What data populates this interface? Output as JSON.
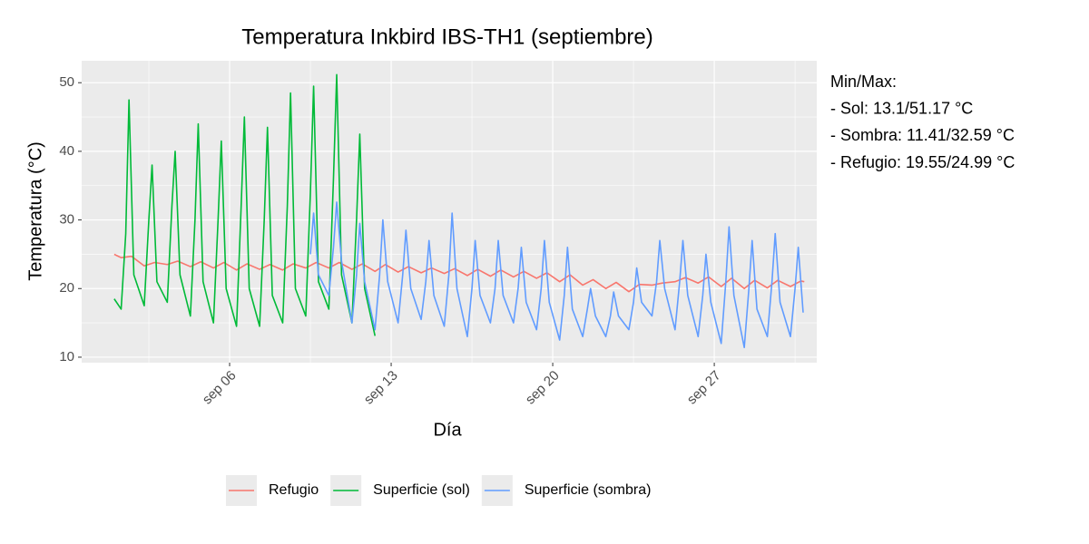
{
  "chart_data": {
    "type": "line",
    "title": "Temperatura Inkbird IBS-TH1 (septiembre)",
    "x_label": "Día",
    "y_label": "Temperatura (°C)",
    "annotation": [
      "Min/Max:",
      "- Sol: 13.1/51.17 °C",
      "- Sombra: 11.41/32.59 °C",
      "- Refugio: 19.55/24.99 °C"
    ],
    "xlim": [
      -0.41,
      31.44
    ],
    "ylim": [
      9.2,
      53.2
    ],
    "xticks": [
      {
        "value": 6,
        "label": "sep 06"
      },
      {
        "value": 13,
        "label": "sep 13"
      },
      {
        "value": 20,
        "label": "sep 20"
      },
      {
        "value": 27,
        "label": "sep 27"
      }
    ],
    "yticks": [
      10,
      20,
      30,
      40,
      50
    ],
    "grid": true,
    "legend": "bottom",
    "series": [
      {
        "name": "Refugio",
        "color": "#F8766D",
        "x": [
          1.0,
          1.3,
          1.75,
          2.3,
          2.75,
          3.3,
          3.75,
          4.3,
          4.75,
          5.3,
          5.75,
          6.3,
          6.75,
          7.3,
          7.75,
          8.3,
          8.75,
          9.3,
          9.75,
          10.3,
          10.75,
          11.3,
          11.75,
          12.3,
          12.75,
          13.3,
          13.75,
          14.3,
          14.75,
          15.3,
          15.75,
          16.3,
          16.75,
          17.3,
          17.75,
          18.3,
          18.75,
          19.3,
          19.75,
          20.3,
          20.75,
          21.3,
          21.75,
          22.3,
          22.75,
          23.3,
          23.75,
          24.3,
          24.75,
          25.3,
          25.75,
          26.3,
          26.75,
          27.3,
          27.75,
          28.3,
          28.75,
          29.3,
          29.75,
          30.3,
          30.75,
          30.9
        ],
        "values": [
          24.99,
          24.5,
          24.7,
          23.3,
          23.8,
          23.5,
          24.0,
          23.2,
          23.9,
          23.0,
          23.8,
          22.7,
          23.6,
          22.8,
          23.5,
          22.7,
          23.6,
          23.0,
          23.8,
          23.0,
          23.8,
          22.8,
          23.6,
          22.5,
          23.5,
          22.4,
          23.2,
          22.3,
          23.0,
          22.2,
          22.9,
          21.9,
          22.8,
          21.8,
          22.7,
          21.7,
          22.5,
          21.5,
          22.3,
          21.0,
          22.0,
          20.5,
          21.3,
          20.0,
          20.9,
          19.55,
          20.6,
          20.5,
          20.8,
          21.0,
          21.6,
          20.8,
          21.7,
          20.3,
          21.5,
          20.0,
          21.2,
          20.1,
          21.2,
          20.3,
          21.1,
          21.0
        ]
      },
      {
        "name": "Superficie (sol)",
        "color": "#00BA38",
        "x": [
          1.0,
          1.3,
          1.5,
          1.64,
          1.85,
          2.3,
          2.5,
          2.64,
          2.85,
          3.3,
          3.5,
          3.64,
          3.85,
          4.3,
          4.5,
          4.64,
          4.85,
          5.3,
          5.5,
          5.64,
          5.85,
          6.3,
          6.5,
          6.64,
          6.85,
          7.3,
          7.5,
          7.64,
          7.85,
          8.3,
          8.5,
          8.64,
          8.85,
          9.3,
          9.5,
          9.64,
          9.85,
          10.3,
          10.5,
          10.64,
          10.85,
          11.3,
          11.5,
          11.64,
          11.85,
          12.3
        ],
        "values": [
          18.5,
          17,
          28,
          47.5,
          22,
          17.5,
          30,
          38,
          21,
          18,
          32,
          40,
          22,
          16,
          30,
          44,
          21,
          15,
          30,
          41.5,
          20,
          14.5,
          32,
          45,
          20,
          14.5,
          30,
          43.5,
          19,
          15,
          32,
          48.5,
          20,
          16,
          34,
          49.5,
          21,
          17,
          36,
          51.17,
          22,
          15,
          30,
          42.5,
          20,
          13.1
        ]
      },
      {
        "name": "Superficie (sombra)",
        "color": "#619CFF",
        "x": [
          9.5,
          9.64,
          9.85,
          10.3,
          10.5,
          10.64,
          10.85,
          11.3,
          11.5,
          11.64,
          11.85,
          12.3,
          12.5,
          12.64,
          12.85,
          13.3,
          13.5,
          13.64,
          13.85,
          14.3,
          14.5,
          14.64,
          14.85,
          15.3,
          15.5,
          15.64,
          15.85,
          16.3,
          16.5,
          16.64,
          16.85,
          17.3,
          17.5,
          17.64,
          17.85,
          18.3,
          18.5,
          18.64,
          18.85,
          19.3,
          19.5,
          19.64,
          19.85,
          20.3,
          20.5,
          20.64,
          20.85,
          21.3,
          21.5,
          21.64,
          21.85,
          22.3,
          22.5,
          22.64,
          22.85,
          23.3,
          23.5,
          23.64,
          23.85,
          24.3,
          24.5,
          24.64,
          24.85,
          25.3,
          25.5,
          25.64,
          25.85,
          26.3,
          26.5,
          26.64,
          26.85,
          27.3,
          27.5,
          27.64,
          27.85,
          28.3,
          28.5,
          28.64,
          28.85,
          29.3,
          29.5,
          29.64,
          29.85,
          30.3,
          30.5,
          30.64,
          30.85
        ],
        "values": [
          25,
          31,
          22,
          19,
          26,
          32.59,
          24,
          15,
          22,
          29.5,
          21,
          14,
          22,
          30,
          21,
          15,
          22,
          28.5,
          20,
          15.5,
          21,
          27,
          19,
          14.5,
          22,
          31,
          20,
          13,
          20,
          27,
          19,
          15,
          20,
          27,
          19,
          15,
          20,
          26,
          18,
          14,
          20,
          27,
          18,
          12.5,
          19,
          26,
          17,
          13,
          17,
          20,
          16,
          13,
          16,
          19.5,
          16,
          14,
          18,
          23,
          18,
          16,
          21,
          27,
          20,
          14,
          21,
          27,
          19,
          13,
          19,
          25,
          18,
          12,
          21,
          29,
          19,
          11.41,
          20,
          27,
          17,
          13,
          21,
          28,
          18,
          13,
          20,
          26,
          16.5
        ]
      }
    ]
  }
}
